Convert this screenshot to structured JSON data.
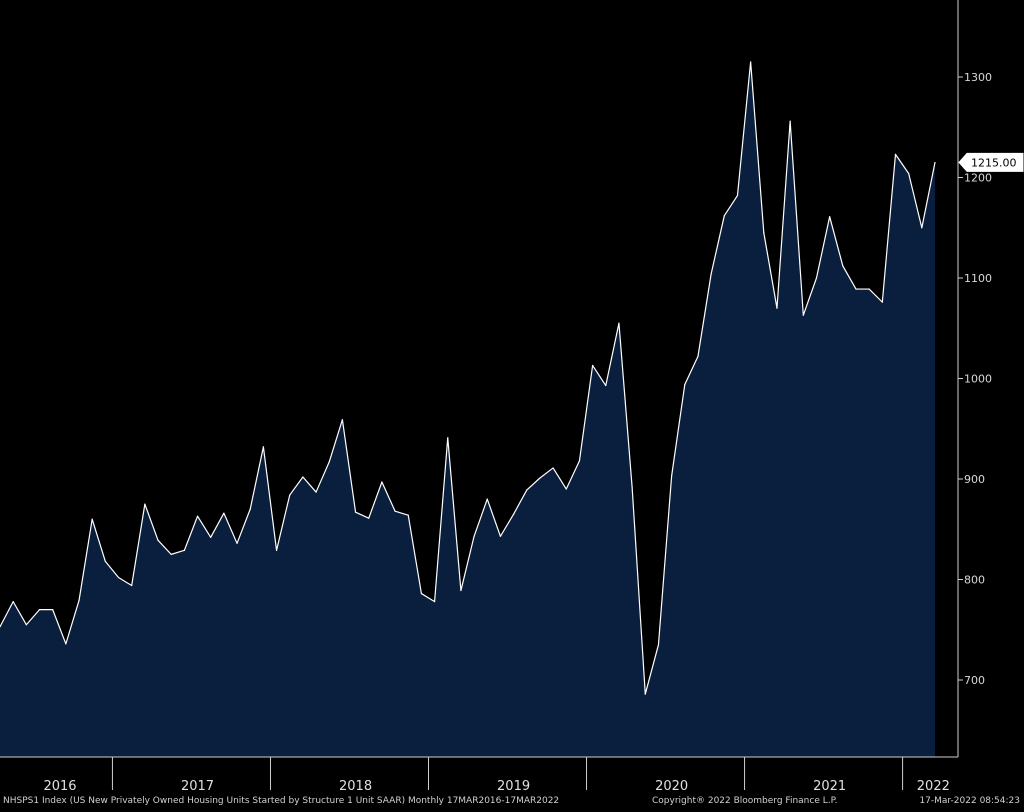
{
  "chart_data": {
    "type": "area",
    "series": [
      {
        "values": [
          753,
          778,
          755,
          770,
          770,
          736,
          779,
          860,
          818,
          802,
          794,
          875,
          839,
          825,
          829,
          863,
          842,
          866,
          836,
          870,
          932,
          829,
          884,
          902,
          887,
          917,
          959,
          867,
          861,
          897,
          868,
          864,
          786,
          778,
          941,
          789,
          843,
          880,
          843,
          865,
          889,
          901,
          911,
          890,
          918,
          1013,
          993,
          1055,
          892,
          686,
          735,
          903,
          994,
          1022,
          1104,
          1162,
          1182,
          1315,
          1145,
          1070,
          1256,
          1063,
          1100,
          1161,
          1112,
          1089,
          1089,
          1076,
          1223,
          1204,
          1150,
          1215
        ]
      }
    ],
    "x_start": "2016-04",
    "x_end": "2022-03",
    "ylim": [
      635,
      1375
    ],
    "yticks": [
      700,
      800,
      900,
      1000,
      1100,
      1200,
      1300
    ],
    "xticks": [
      "2016",
      "2017",
      "2018",
      "2019",
      "2020",
      "2021",
      "2022"
    ],
    "last_value_label": "1215.00",
    "area_color": "#0a1f3d",
    "line_color": "#ffffff",
    "background": "#000000"
  },
  "footer": {
    "left": "NHSPS1 Index (US New Privately Owned Housing Units Started by Structure 1 Unit SAAR)  Monthly 17MAR2016-17MAR2022",
    "center": "Copyright® 2022 Bloomberg Finance L.P.",
    "right": "17-Mar-2022 08:54:23"
  }
}
